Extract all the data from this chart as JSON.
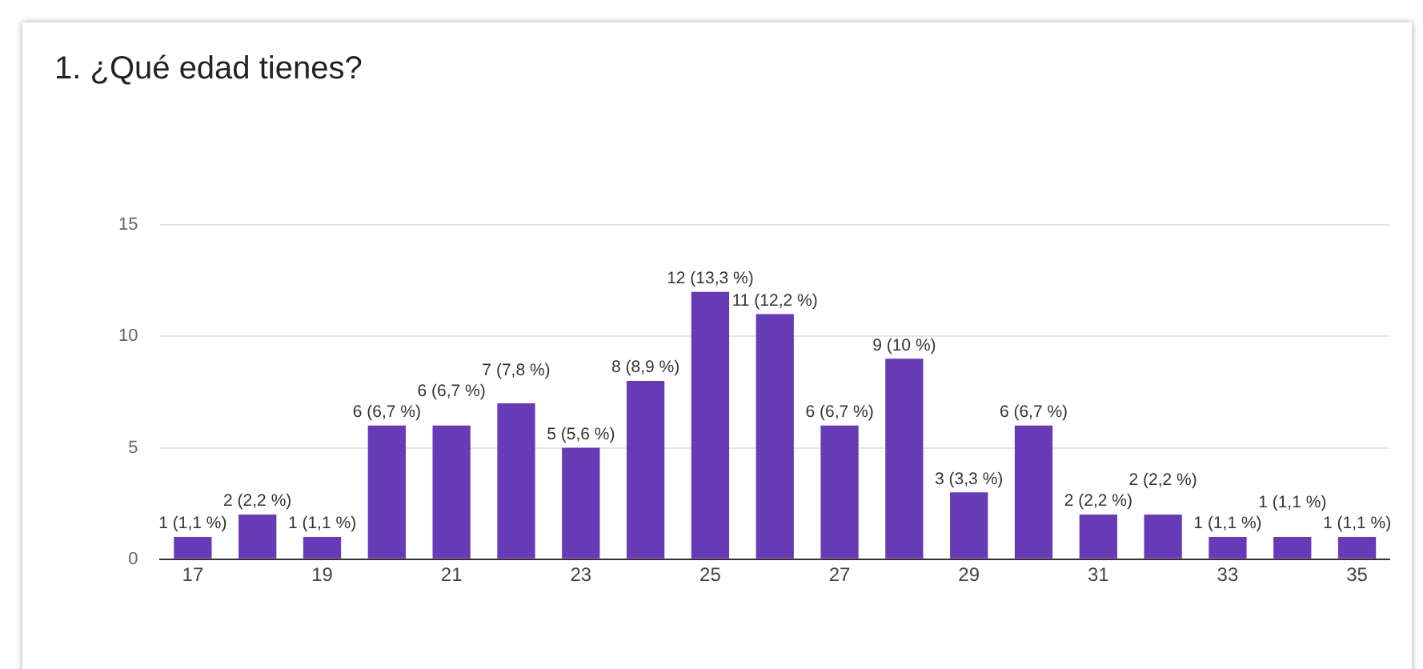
{
  "chart_data": {
    "type": "bar",
    "title": "1. ¿Qué edad tienes?",
    "categories": [
      "17",
      null,
      "19",
      null,
      "21",
      null,
      "23",
      null,
      "25",
      null,
      "27",
      null,
      "29",
      null,
      "31",
      null,
      "33",
      null,
      "35"
    ],
    "values": [
      1,
      2,
      1,
      6,
      6,
      7,
      5,
      8,
      12,
      11,
      6,
      9,
      3,
      6,
      2,
      2,
      1,
      1,
      1
    ],
    "value_labels": [
      "1 (1,1 %)",
      "2 (2,2 %)",
      "1 (1,1 %)",
      "6 (6,7 %)",
      "6 (6,7 %)",
      "7 (7,8 %)",
      "5 (5,6 %)",
      "8 (8,9 %)",
      "12 (13,3 %)",
      "11 (12,2 %)",
      "6 (6,7 %)",
      "9 (10 %)",
      "3 (3,3 %)",
      "6 (6,7 %)",
      "2 (2,2 %)",
      "2 (2,2 %)",
      "1 (1,1 %)",
      "1 (1,1 %)",
      "1 (1,1 %)"
    ],
    "color": "#673ab7",
    "ylim": [
      0,
      15
    ],
    "yticks": [
      0,
      5,
      10,
      15
    ],
    "grid": "y",
    "legend": false
  }
}
